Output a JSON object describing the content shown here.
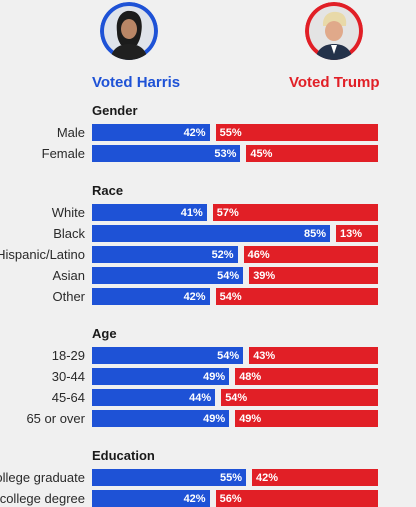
{
  "chart_data": {
    "type": "bar",
    "orientation": "horizontal-diverging",
    "series": [
      {
        "name": "Voted Harris",
        "color": "#1e52d6"
      },
      {
        "name": "Voted Trump",
        "color": "#e11f26"
      }
    ],
    "groups": [
      {
        "title": "Gender",
        "rows": [
          {
            "label": "Male",
            "harris": 42,
            "trump": 55,
            "harris_text": "42%",
            "trump_text": "55%"
          },
          {
            "label": "Female",
            "harris": 53,
            "trump": 45,
            "harris_text": "53%",
            "trump_text": "45%"
          }
        ]
      },
      {
        "title": "Race",
        "rows": [
          {
            "label": "White",
            "harris": 41,
            "trump": 57,
            "harris_text": "41%",
            "trump_text": "57%"
          },
          {
            "label": "Black",
            "harris": 85,
            "trump": 13,
            "harris_text": "85%",
            "trump_text": "13%"
          },
          {
            "label": "Hispanic/Latino",
            "harris": 52,
            "trump": 46,
            "harris_text": "52%",
            "trump_text": "46%"
          },
          {
            "label": "Asian",
            "harris": 54,
            "trump": 39,
            "harris_text": "54%",
            "trump_text": "39%"
          },
          {
            "label": "Other",
            "harris": 42,
            "trump": 54,
            "harris_text": "42%",
            "trump_text": "54%"
          }
        ]
      },
      {
        "title": "Age",
        "rows": [
          {
            "label": "18-29",
            "harris": 54,
            "trump": 43,
            "harris_text": "54%",
            "trump_text": "43%"
          },
          {
            "label": "30-44",
            "harris": 49,
            "trump": 48,
            "harris_text": "49%",
            "trump_text": "48%"
          },
          {
            "label": "45-64",
            "harris": 44,
            "trump": 54,
            "harris_text": "44%",
            "trump_text": "54%"
          },
          {
            "label": "65 or over",
            "harris": 49,
            "trump": 49,
            "harris_text": "49%",
            "trump_text": "49%"
          }
        ]
      },
      {
        "title": "Education",
        "rows": [
          {
            "label": "College graduate",
            "harris": 55,
            "trump": 42,
            "harris_text": "55%",
            "trump_text": "42%"
          },
          {
            "label": "No college degree",
            "harris": 42,
            "trump": 56,
            "harris_text": "42%",
            "trump_text": "56%"
          }
        ]
      }
    ]
  },
  "header": {
    "harris_label": "Voted Harris",
    "trump_label": "Voted Trump",
    "harris_color": "#1e52d6",
    "trump_color": "#e11f26"
  }
}
